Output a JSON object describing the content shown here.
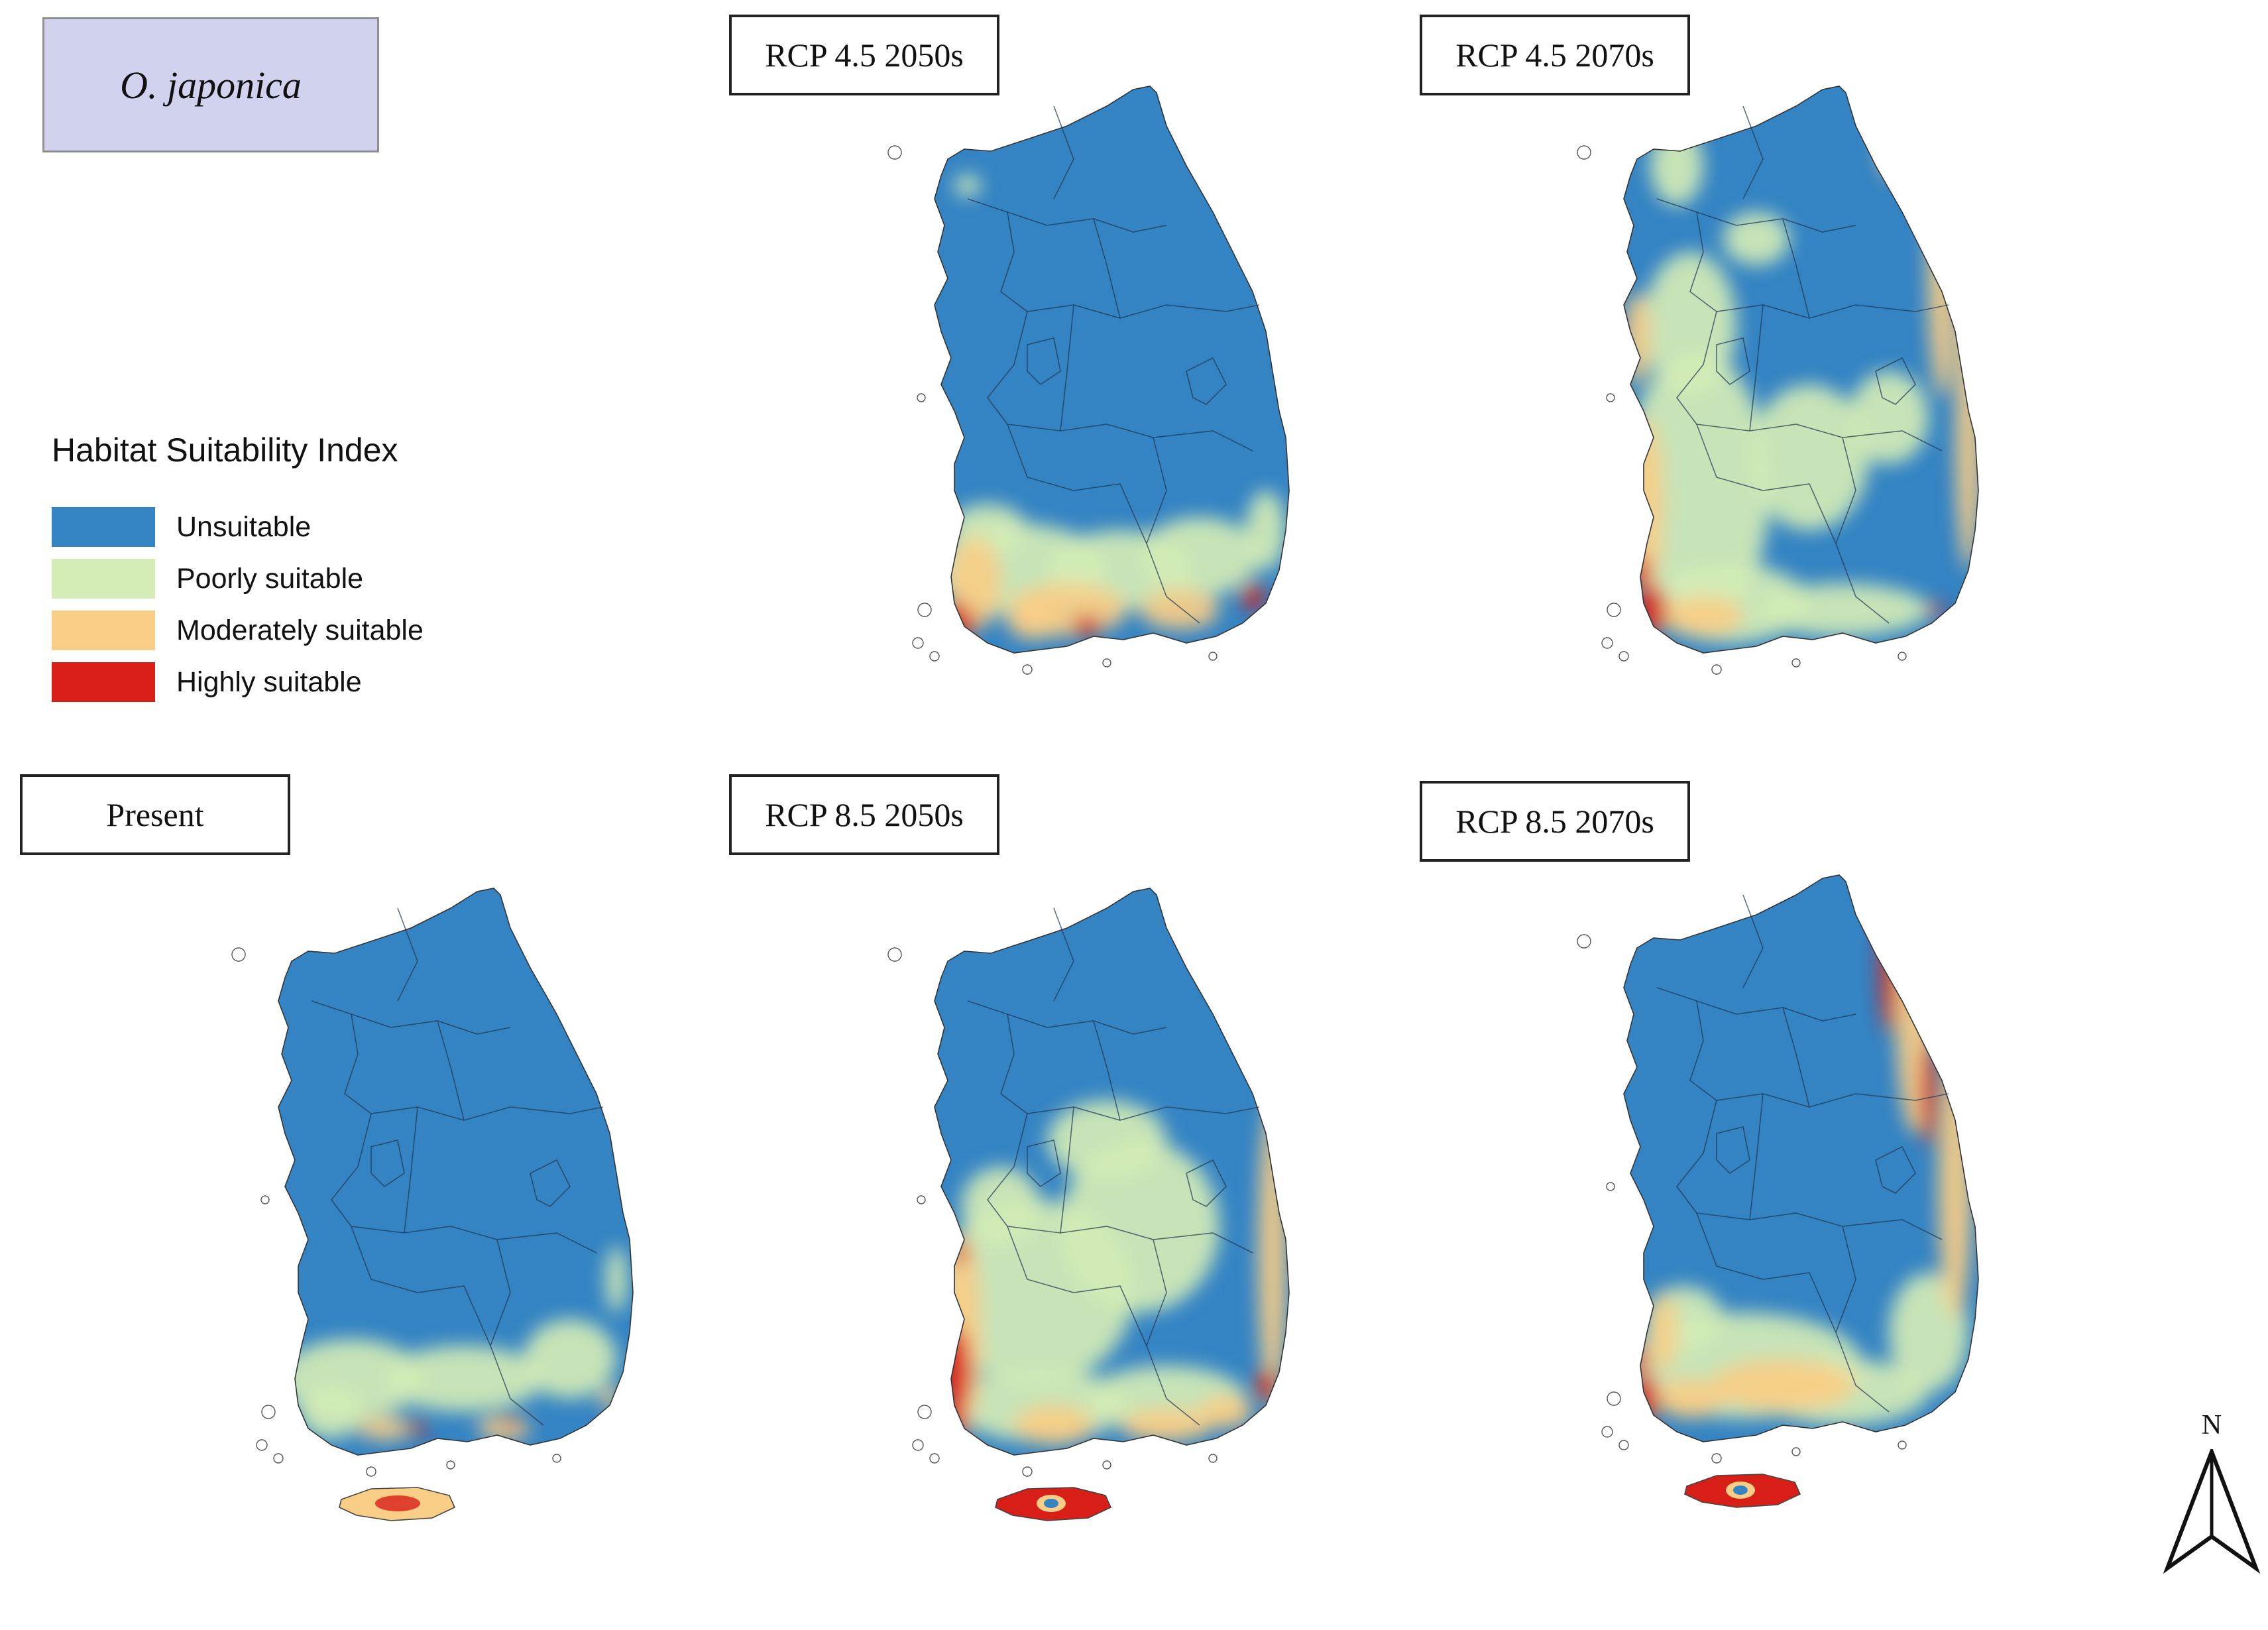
{
  "species": "O. japonica",
  "legend": {
    "title": "Habitat Suitability Index",
    "classes": [
      {
        "label": "Unsuitable",
        "color": "#3484c4"
      },
      {
        "label": "Poorly suitable",
        "color": "#d4ecb6"
      },
      {
        "label": "Moderately suitable",
        "color": "#f8cd86"
      },
      {
        "label": "Highly suitable",
        "color": "#d71f18"
      }
    ]
  },
  "maps": [
    {
      "id": "rcp45-2050",
      "label": "RCP 4.5 2050s"
    },
    {
      "id": "rcp45-2070",
      "label": "RCP 4.5 2070s"
    },
    {
      "id": "present",
      "label": "Present"
    },
    {
      "id": "rcp85-2050",
      "label": "RCP 8.5 2050s"
    },
    {
      "id": "rcp85-2070",
      "label": "RCP 8.5 2070s"
    }
  ],
  "north_arrow": {
    "label": "N",
    "icon": "north-arrow-icon"
  }
}
